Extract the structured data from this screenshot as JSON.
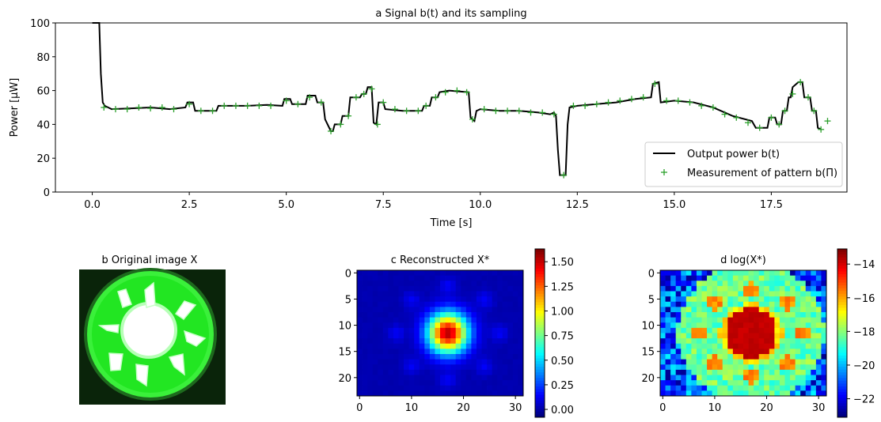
{
  "chart_data": [
    {
      "id": "a",
      "type": "line",
      "title": "a Signal b(t) and its sampling",
      "xlabel": "Time [s]",
      "ylabel": "Power [μW]",
      "xlim": [
        -0.95,
        19.45
      ],
      "ylim": [
        0,
        100
      ],
      "xticks": [
        "0.0",
        "2.5",
        "5.0",
        "7.5",
        "10.0",
        "12.5",
        "15.0",
        "17.5"
      ],
      "yticks": [
        "0",
        "20",
        "40",
        "60",
        "80",
        "100"
      ],
      "legend_position": "bottom-right",
      "legend": [
        "Output power b(t)",
        "Measurement of pattern b(Π)"
      ],
      "series": [
        {
          "name": "Output power b(t)",
          "color": "#000000",
          "segments": [
            [
              0.0,
              100
            ],
            [
              0.18,
              100
            ],
            [
              0.22,
              70
            ],
            [
              0.27,
              53
            ],
            [
              0.32,
              51
            ],
            [
              0.5,
              49
            ],
            [
              1.0,
              49.5
            ],
            [
              1.5,
              50
            ],
            [
              2.0,
              49
            ],
            [
              2.4,
              50
            ],
            [
              2.45,
              53
            ],
            [
              2.6,
              53
            ],
            [
              2.65,
              48
            ],
            [
              3.2,
              48
            ],
            [
              3.25,
              51
            ],
            [
              4.0,
              51
            ],
            [
              4.5,
              51.5
            ],
            [
              4.9,
              51
            ],
            [
              4.95,
              55
            ],
            [
              5.1,
              55
            ],
            [
              5.15,
              52
            ],
            [
              5.5,
              52
            ],
            [
              5.55,
              57
            ],
            [
              5.75,
              57
            ],
            [
              5.8,
              53
            ],
            [
              5.95,
              53
            ],
            [
              6.0,
              43
            ],
            [
              6.15,
              36
            ],
            [
              6.2,
              36
            ],
            [
              6.25,
              40
            ],
            [
              6.4,
              40
            ],
            [
              6.45,
              45
            ],
            [
              6.6,
              45
            ],
            [
              6.65,
              56
            ],
            [
              6.9,
              56
            ],
            [
              6.95,
              58
            ],
            [
              7.05,
              58
            ],
            [
              7.1,
              62
            ],
            [
              7.2,
              62
            ],
            [
              7.25,
              41
            ],
            [
              7.32,
              40
            ],
            [
              7.38,
              53
            ],
            [
              7.5,
              53
            ],
            [
              7.55,
              49
            ],
            [
              8.0,
              48
            ],
            [
              8.5,
              48
            ],
            [
              8.55,
              51
            ],
            [
              8.7,
              51
            ],
            [
              8.75,
              56
            ],
            [
              8.9,
              56
            ],
            [
              8.95,
              59
            ],
            [
              9.2,
              60
            ],
            [
              9.7,
              59
            ],
            [
              9.75,
              44
            ],
            [
              9.85,
              42
            ],
            [
              9.9,
              48
            ],
            [
              10.0,
              49
            ],
            [
              10.5,
              48
            ],
            [
              11.0,
              48
            ],
            [
              11.5,
              47
            ],
            [
              11.8,
              46
            ],
            [
              11.9,
              47
            ],
            [
              11.95,
              45
            ],
            [
              12.0,
              25
            ],
            [
              12.05,
              10
            ],
            [
              12.2,
              10
            ],
            [
              12.25,
              40
            ],
            [
              12.3,
              50
            ],
            [
              12.5,
              51
            ],
            [
              13.0,
              52
            ],
            [
              13.5,
              53
            ],
            [
              14.0,
              55
            ],
            [
              14.4,
              56
            ],
            [
              14.45,
              64
            ],
            [
              14.6,
              65
            ],
            [
              14.65,
              53
            ],
            [
              15.0,
              54
            ],
            [
              15.5,
              53
            ],
            [
              16.0,
              50
            ],
            [
              16.5,
              45
            ],
            [
              17.0,
              42
            ],
            [
              17.1,
              38
            ],
            [
              17.4,
              38
            ],
            [
              17.45,
              44
            ],
            [
              17.6,
              44
            ],
            [
              17.65,
              40
            ],
            [
              17.75,
              40
            ],
            [
              17.8,
              48
            ],
            [
              17.9,
              48
            ],
            [
              17.95,
              56
            ],
            [
              18.0,
              56
            ],
            [
              18.05,
              62
            ],
            [
              18.2,
              65
            ],
            [
              18.3,
              65
            ],
            [
              18.35,
              56
            ],
            [
              18.5,
              56
            ],
            [
              18.55,
              48
            ],
            [
              18.65,
              48
            ],
            [
              18.7,
              38
            ],
            [
              18.78,
              37
            ]
          ]
        },
        {
          "name": "Measurement of pattern b(Π)",
          "color": "#2ca02c",
          "marker": "+",
          "points": [
            [
              0.3,
              50
            ],
            [
              0.6,
              49
            ],
            [
              0.9,
              49
            ],
            [
              1.2,
              50
            ],
            [
              1.5,
              49.5
            ],
            [
              1.8,
              50
            ],
            [
              2.1,
              49
            ],
            [
              2.5,
              52
            ],
            [
              2.8,
              48
            ],
            [
              3.1,
              48
            ],
            [
              3.4,
              51
            ],
            [
              3.7,
              51
            ],
            [
              4.0,
              51
            ],
            [
              4.3,
              51
            ],
            [
              4.6,
              51
            ],
            [
              5.0,
              54
            ],
            [
              5.3,
              52
            ],
            [
              5.6,
              56
            ],
            [
              5.9,
              53
            ],
            [
              6.15,
              36
            ],
            [
              6.4,
              40
            ],
            [
              6.6,
              45
            ],
            [
              6.8,
              56
            ],
            [
              7.0,
              58
            ],
            [
              7.2,
              61
            ],
            [
              7.35,
              40
            ],
            [
              7.5,
              53
            ],
            [
              7.8,
              49
            ],
            [
              8.1,
              48
            ],
            [
              8.4,
              48
            ],
            [
              8.6,
              51
            ],
            [
              8.85,
              56
            ],
            [
              9.1,
              59
            ],
            [
              9.4,
              60
            ],
            [
              9.65,
              59
            ],
            [
              9.8,
              43
            ],
            [
              10.1,
              49
            ],
            [
              10.4,
              48
            ],
            [
              10.7,
              48
            ],
            [
              11.0,
              48
            ],
            [
              11.3,
              47
            ],
            [
              11.6,
              47
            ],
            [
              11.9,
              46
            ],
            [
              12.15,
              10
            ],
            [
              12.4,
              51
            ],
            [
              12.7,
              51
            ],
            [
              13.0,
              52
            ],
            [
              13.3,
              53
            ],
            [
              13.6,
              54
            ],
            [
              13.9,
              55
            ],
            [
              14.2,
              56
            ],
            [
              14.5,
              64
            ],
            [
              14.8,
              54
            ],
            [
              15.1,
              54
            ],
            [
              15.4,
              53
            ],
            [
              15.7,
              51
            ],
            [
              16.0,
              50
            ],
            [
              16.3,
              46
            ],
            [
              16.6,
              44
            ],
            [
              16.9,
              41
            ],
            [
              17.2,
              38
            ],
            [
              17.5,
              44
            ],
            [
              17.7,
              40
            ],
            [
              17.85,
              48
            ],
            [
              18.05,
              58
            ],
            [
              18.25,
              65
            ],
            [
              18.45,
              56
            ],
            [
              18.6,
              48
            ],
            [
              18.78,
              37
            ],
            [
              18.95,
              42
            ]
          ]
        }
      ]
    },
    {
      "id": "b",
      "type": "image",
      "title": "b Original image X"
    },
    {
      "id": "c",
      "type": "heatmap",
      "title": "c Reconstructed X*",
      "xticks": [
        "0",
        "10",
        "20",
        "30"
      ],
      "yticks": [
        "0",
        "5",
        "10",
        "15",
        "20"
      ],
      "grid_size": [
        32,
        24
      ],
      "colorbar_ticks": [
        "0.00",
        "0.25",
        "0.50",
        "0.75",
        "1.00",
        "1.25",
        "1.50"
      ],
      "vmin": -0.08,
      "vmax": 1.63,
      "center": [
        17,
        11.5
      ],
      "core_radius": 4.3,
      "core_peak": 1.55,
      "petal_peak": 0.12,
      "petal_radius": 9.5
    },
    {
      "id": "d",
      "type": "heatmap",
      "title": "d log(X*)",
      "xticks": [
        "0",
        "10",
        "20",
        "30"
      ],
      "yticks": [
        "0",
        "5",
        "10",
        "15",
        "20"
      ],
      "grid_size": [
        32,
        24
      ],
      "colorbar_ticks": [
        "−14",
        "−16",
        "−18",
        "−20",
        "−22"
      ],
      "vmin": -23.1,
      "vmax": -13.1,
      "center": [
        17,
        11.5
      ],
      "core_radius": 4.6,
      "core_value": -13.6,
      "petal_value": -15.3,
      "petal_radius": 9.2,
      "disk_value": -18.3,
      "disk_radius": 13.5,
      "outside_value": -21.2
    }
  ]
}
